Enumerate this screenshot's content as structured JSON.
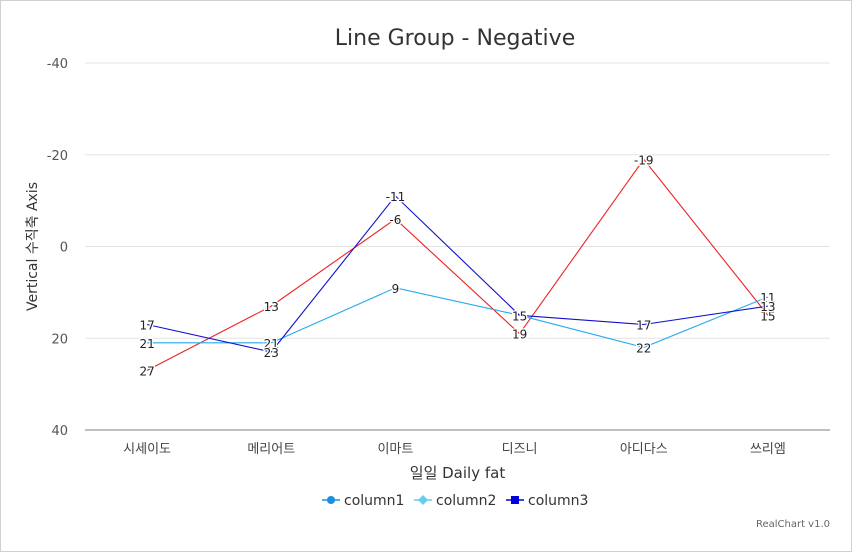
{
  "chart_data": {
    "type": "line",
    "title": "Line Group - Negative",
    "xlabel": "일일 Daily fat",
    "ylabel": "Vertical 수직축 Axis",
    "categories": [
      "시세이도",
      "메리어트",
      "이마트",
      "디즈니",
      "아디다스",
      "쓰리엠"
    ],
    "ylim": [
      -40,
      40
    ],
    "y_reversed": true,
    "yticks": [
      "-40",
      "-20",
      "0",
      "20",
      "40"
    ],
    "grid": true,
    "legend_position": "bottom",
    "series": [
      {
        "name": "column1",
        "color": "#ee2222",
        "values": [
          27,
          13,
          -6,
          19,
          -19,
          15
        ]
      },
      {
        "name": "column2",
        "color": "#22aaee",
        "values": [
          21,
          21,
          9,
          15,
          22,
          11
        ]
      },
      {
        "name": "column3",
        "color": "#1111cc",
        "values": [
          17,
          23,
          -11,
          15,
          17,
          13
        ]
      }
    ],
    "legend": [
      {
        "name": "column1",
        "color": "#1a8fe0",
        "marker": "circle"
      },
      {
        "name": "column2",
        "color": "#66ccf0",
        "marker": "diamond"
      },
      {
        "name": "column3",
        "color": "#0000dd",
        "marker": "square"
      }
    ]
  },
  "credit": "RealChart v1.0"
}
